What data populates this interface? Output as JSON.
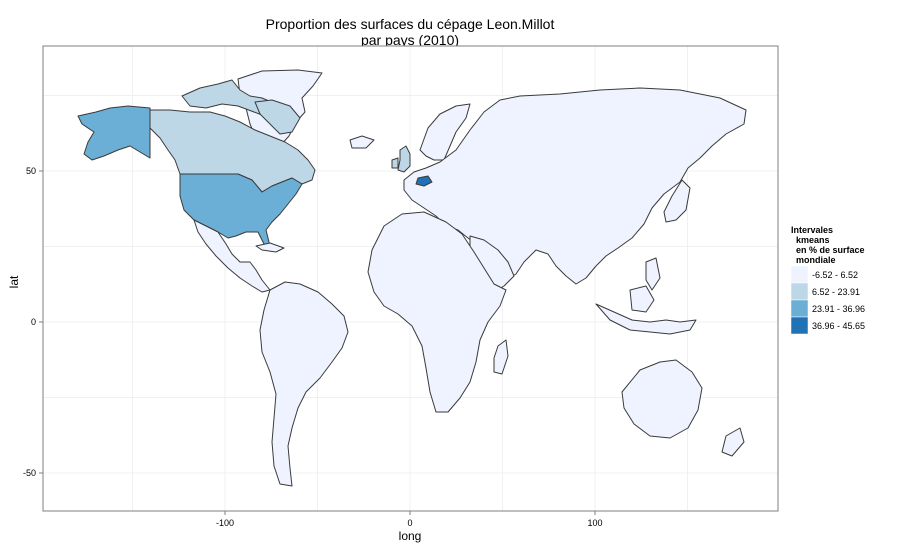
{
  "title_lines": [
    "Proportion des surfaces du cépage Leon.Millot",
    "par pays (2010)"
  ],
  "x_axis": {
    "label": "long",
    "ticks": [
      -100,
      0,
      100
    ],
    "range": [
      -190,
      200
    ]
  },
  "y_axis": {
    "label": "lat",
    "ticks": [
      -50,
      0,
      50
    ],
    "range": [
      -62,
      92
    ]
  },
  "legend": {
    "title_lines": [
      "Intervales",
      "kmeans",
      "en % de surface",
      "mondiale"
    ],
    "placement": "right",
    "classes": [
      {
        "label": "-6.52 - 6.52",
        "color": "#eff3ff"
      },
      {
        "label": "6.52 - 23.91",
        "color": "#bdd7e7"
      },
      {
        "label": "23.91 - 36.96",
        "color": "#6baed6"
      },
      {
        "label": "36.96 - 45.65",
        "color": "#2171b5"
      }
    ]
  },
  "highlighted_regions": [
    {
      "region": "United States",
      "class": 2
    },
    {
      "region": "Alaska",
      "class": 2
    },
    {
      "region": "Canada",
      "class": 1
    },
    {
      "region": "United Kingdom",
      "class": 1
    },
    {
      "region": "Switzerland",
      "class": 3
    }
  ],
  "colors": {
    "border": "#3a3a3a",
    "panel_border": "#7f7f7f",
    "grid": "#f0f0f0"
  }
}
